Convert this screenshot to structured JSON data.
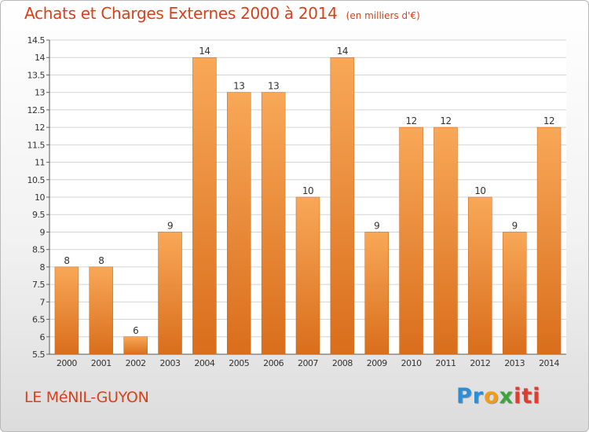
{
  "header": {
    "title": "Achats et Charges Externes 2000 à 2014",
    "unit": "(en milliers d'€)"
  },
  "footer": {
    "commune": "LE MéNIL-GUYON",
    "logo_parts": [
      "Pr",
      "o",
      "x",
      "iti"
    ]
  },
  "colors": {
    "bar_top": "#f8a858",
    "bar_bottom": "#d96e1c",
    "title": "#d8401a"
  },
  "chart_data": {
    "type": "bar",
    "title": "Achats et Charges Externes 2000 à 2014",
    "subtitle": "(en milliers d'€)",
    "categories": [
      "2000",
      "2001",
      "2002",
      "2003",
      "2004",
      "2005",
      "2006",
      "2007",
      "2008",
      "2009",
      "2010",
      "2011",
      "2012",
      "2013",
      "2014"
    ],
    "values": [
      8,
      8,
      6,
      9,
      14,
      13,
      13,
      10,
      14,
      9,
      12,
      12,
      10,
      9,
      12
    ],
    "value_labels": [
      "8",
      "8",
      "6",
      "9",
      "14",
      "13",
      "13",
      "10",
      "14",
      "9",
      "12",
      "12",
      "10",
      "9",
      "12"
    ],
    "ylim": [
      5.5,
      14.5
    ],
    "yticks": [
      5.5,
      6,
      6.5,
      7,
      7.5,
      8,
      8.5,
      9,
      9.5,
      10,
      10.5,
      11,
      11.5,
      12,
      12.5,
      13,
      13.5,
      14,
      14.5
    ],
    "ytick_labels": [
      "5.5",
      "6",
      "6.5",
      "7",
      "7.5",
      "8",
      "8.5",
      "9",
      "9.5",
      "10",
      "10.5",
      "11",
      "11.5",
      "12",
      "12.5",
      "13",
      "13.5",
      "14",
      "14.5"
    ],
    "grid": true,
    "legend": "none"
  }
}
